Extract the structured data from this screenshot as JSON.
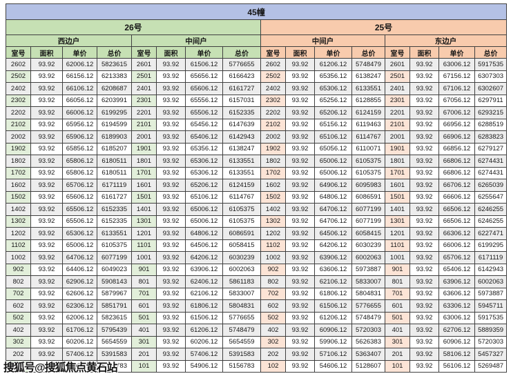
{
  "title": "45幢",
  "watermark": "搜狐号@搜狐焦点黄石站",
  "columns": [
    "室号",
    "面积",
    "单价",
    "总价"
  ],
  "colors": {
    "title_bg": "#b4c1e5",
    "group26_bg": "#c6e0b4",
    "group25_bg": "#f8cbad",
    "room_col_green": "#e2efda",
    "room_col_orange": "#fce4d6",
    "band_row": "#ededed",
    "grid_border": "#3f3f3f"
  },
  "groups": [
    {
      "label": "26号",
      "theme": "green",
      "units": [
        {
          "label": "西边户",
          "rows": [
            [
              "2602",
              "93.92",
              "62006.12",
              "5823615"
            ],
            [
              "2502",
              "93.92",
              "66156.12",
              "6213383"
            ],
            [
              "2402",
              "93.92",
              "66106.12",
              "6208687"
            ],
            [
              "2302",
              "93.92",
              "66056.12",
              "6203991"
            ],
            [
              "2202",
              "93.92",
              "66006.12",
              "6199295"
            ],
            [
              "2102",
              "93.92",
              "65956.12",
              "6194599"
            ],
            [
              "2002",
              "93.92",
              "65906.12",
              "6189903"
            ],
            [
              "1902",
              "93.92",
              "65856.12",
              "6185207"
            ],
            [
              "1802",
              "93.92",
              "65806.12",
              "6180511"
            ],
            [
              "1702",
              "93.92",
              "65806.12",
              "6180511"
            ],
            [
              "1602",
              "93.92",
              "65706.12",
              "6171119"
            ],
            [
              "1502",
              "93.92",
              "65606.12",
              "6161727"
            ],
            [
              "1402",
              "93.92",
              "65506.12",
              "6152335"
            ],
            [
              "1302",
              "93.92",
              "65506.12",
              "6152335"
            ],
            [
              "1202",
              "93.92",
              "65306.12",
              "6133551"
            ],
            [
              "1102",
              "93.92",
              "65006.12",
              "6105375"
            ],
            [
              "1002",
              "93.92",
              "64706.12",
              "6077199"
            ],
            [
              "902",
              "93.92",
              "64406.12",
              "6049023"
            ],
            [
              "802",
              "93.92",
              "62906.12",
              "5908143"
            ],
            [
              "702",
              "93.92",
              "62606.12",
              "5879967"
            ],
            [
              "602",
              "93.92",
              "62306.12",
              "5851791"
            ],
            [
              "502",
              "93.92",
              "62006.12",
              "5823615"
            ],
            [
              "402",
              "93.92",
              "61706.12",
              "5795439"
            ],
            [
              "302",
              "93.92",
              "60206.12",
              "5654559"
            ],
            [
              "202",
              "93.92",
              "57406.12",
              "5391583"
            ],
            [
              "102",
              "93.92",
              "54906.12",
              "5156783"
            ]
          ]
        },
        {
          "label": "中间户",
          "rows": [
            [
              "2601",
              "93.92",
              "61506.12",
              "5776655"
            ],
            [
              "2501",
              "93.92",
              "65656.12",
              "6166423"
            ],
            [
              "2401",
              "93.92",
              "65606.12",
              "6161727"
            ],
            [
              "2301",
              "93.92",
              "65556.12",
              "6157031"
            ],
            [
              "2201",
              "93.92",
              "65506.12",
              "6152335"
            ],
            [
              "2101",
              "93.92",
              "65456.12",
              "6147639"
            ],
            [
              "2001",
              "93.92",
              "65406.12",
              "6142943"
            ],
            [
              "1901",
              "93.92",
              "65356.12",
              "6138247"
            ],
            [
              "1801",
              "93.92",
              "65306.12",
              "6133551"
            ],
            [
              "1701",
              "93.92",
              "65306.12",
              "6133551"
            ],
            [
              "1601",
              "93.92",
              "65206.12",
              "6124159"
            ],
            [
              "1501",
              "93.92",
              "65106.12",
              "6114767"
            ],
            [
              "1401",
              "93.92",
              "65006.12",
              "6105375"
            ],
            [
              "1301",
              "93.92",
              "65006.12",
              "6105375"
            ],
            [
              "1201",
              "93.92",
              "64806.12",
              "6086591"
            ],
            [
              "1101",
              "93.92",
              "64506.12",
              "6058415"
            ],
            [
              "1001",
              "93.92",
              "64206.12",
              "6030239"
            ],
            [
              "901",
              "93.92",
              "63906.12",
              "6002063"
            ],
            [
              "801",
              "93.92",
              "62406.12",
              "5861183"
            ],
            [
              "701",
              "93.92",
              "62106.12",
              "5833007"
            ],
            [
              "601",
              "93.92",
              "61806.12",
              "5804831"
            ],
            [
              "501",
              "93.92",
              "61506.12",
              "5776655"
            ],
            [
              "401",
              "93.92",
              "61206.12",
              "5748479"
            ],
            [
              "301",
              "93.92",
              "60206.12",
              "5654559"
            ],
            [
              "201",
              "93.92",
              "57406.12",
              "5391583"
            ],
            [
              "101",
              "93.92",
              "54906.12",
              "5156783"
            ]
          ]
        }
      ]
    },
    {
      "label": "25号",
      "theme": "orange",
      "units": [
        {
          "label": "中间户",
          "rows": [
            [
              "2602",
              "93.92",
              "61206.12",
              "5748479"
            ],
            [
              "2502",
              "93.92",
              "65356.12",
              "6138247"
            ],
            [
              "2402",
              "93.92",
              "65306.12",
              "6133551"
            ],
            [
              "2302",
              "93.92",
              "65256.12",
              "6128855"
            ],
            [
              "2202",
              "93.92",
              "65206.12",
              "6124159"
            ],
            [
              "2102",
              "93.92",
              "65156.12",
              "6119463"
            ],
            [
              "2002",
              "93.92",
              "65106.12",
              "6114767"
            ],
            [
              "1902",
              "93.92",
              "65056.12",
              "6110071"
            ],
            [
              "1802",
              "93.92",
              "65006.12",
              "6105375"
            ],
            [
              "1702",
              "93.92",
              "65006.12",
              "6105375"
            ],
            [
              "1602",
              "93.92",
              "64906.12",
              "6095983"
            ],
            [
              "1502",
              "93.92",
              "64806.12",
              "6086591"
            ],
            [
              "1402",
              "93.92",
              "64706.12",
              "6077199"
            ],
            [
              "1302",
              "93.92",
              "64706.12",
              "6077199"
            ],
            [
              "1202",
              "93.92",
              "64506.12",
              "6058415"
            ],
            [
              "1102",
              "93.92",
              "64206.12",
              "6030239"
            ],
            [
              "1002",
              "93.92",
              "63906.12",
              "6002063"
            ],
            [
              "902",
              "93.92",
              "63606.12",
              "5973887"
            ],
            [
              "802",
              "93.92",
              "62106.12",
              "5833007"
            ],
            [
              "702",
              "93.92",
              "61806.12",
              "5804831"
            ],
            [
              "602",
              "93.92",
              "61506.12",
              "5776655"
            ],
            [
              "502",
              "93.92",
              "61206.12",
              "5748479"
            ],
            [
              "402",
              "93.92",
              "60906.12",
              "5720303"
            ],
            [
              "302",
              "93.92",
              "59906.12",
              "5626383"
            ],
            [
              "202",
              "93.92",
              "57106.12",
              "5363407"
            ],
            [
              "102",
              "93.92",
              "54606.12",
              "5128607"
            ]
          ]
        },
        {
          "label": "东边户",
          "rows": [
            [
              "2601",
              "93.92",
              "63006.12",
              "5917535"
            ],
            [
              "2501",
              "93.92",
              "67156.12",
              "6307303"
            ],
            [
              "2401",
              "93.92",
              "67106.12",
              "6302607"
            ],
            [
              "2301",
              "93.92",
              "67056.12",
              "6297911"
            ],
            [
              "2201",
              "93.92",
              "67006.12",
              "6293215"
            ],
            [
              "2101",
              "93.92",
              "66956.12",
              "6288519"
            ],
            [
              "2001",
              "93.92",
              "66906.12",
              "6283823"
            ],
            [
              "1901",
              "93.92",
              "66856.12",
              "6279127"
            ],
            [
              "1801",
              "93.92",
              "66806.12",
              "6274431"
            ],
            [
              "1701",
              "93.92",
              "66806.12",
              "6274431"
            ],
            [
              "1601",
              "93.92",
              "66706.12",
              "6265039"
            ],
            [
              "1501",
              "93.92",
              "66606.12",
              "6255647"
            ],
            [
              "1401",
              "93.92",
              "66506.12",
              "6246255"
            ],
            [
              "1301",
              "93.92",
              "66506.12",
              "6246255"
            ],
            [
              "1201",
              "93.92",
              "66306.12",
              "6227471"
            ],
            [
              "1101",
              "93.92",
              "66006.12",
              "6199295"
            ],
            [
              "1001",
              "93.92",
              "65706.12",
              "6171119"
            ],
            [
              "901",
              "93.92",
              "65406.12",
              "6142943"
            ],
            [
              "801",
              "93.92",
              "63906.12",
              "6002063"
            ],
            [
              "701",
              "93.92",
              "63606.12",
              "5973887"
            ],
            [
              "601",
              "93.92",
              "63306.12",
              "5945711"
            ],
            [
              "501",
              "93.92",
              "63006.12",
              "5917535"
            ],
            [
              "401",
              "93.92",
              "62706.12",
              "5889359"
            ],
            [
              "301",
              "93.92",
              "60906.12",
              "5720303"
            ],
            [
              "201",
              "93.92",
              "58106.12",
              "5457327"
            ],
            [
              "101",
              "93.92",
              "56106.12",
              "5269487"
            ]
          ]
        }
      ]
    }
  ]
}
